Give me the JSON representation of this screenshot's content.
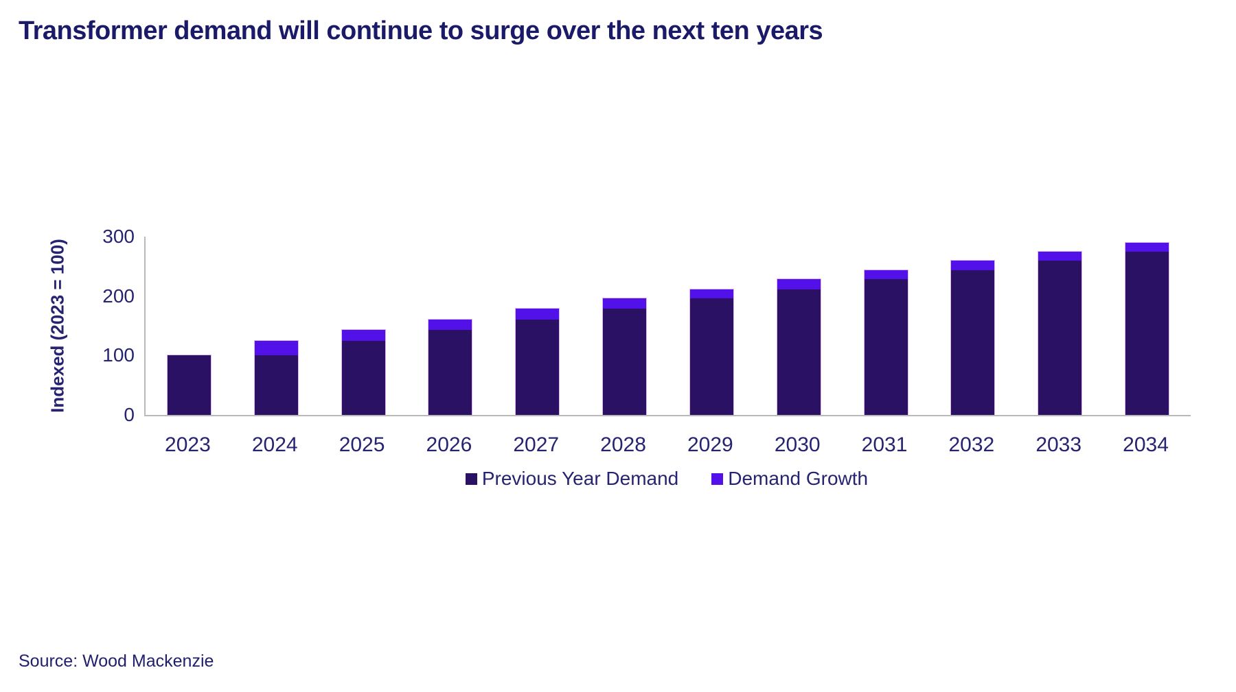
{
  "page": {
    "title": "Transformer demand will continue to surge over the next ten years",
    "source": "Source: Wood Mackenzie"
  },
  "colors": {
    "previous_year_demand": "#2a1164",
    "demand_growth": "#5211e8",
    "bar_outline": "#e2b6e9",
    "axis_line": "#b9b9b9",
    "axis_text": "#262371",
    "title_text": "#1b1a68"
  },
  "chart_data": {
    "type": "bar",
    "stacked": true,
    "categories": [
      "2023",
      "2024",
      "2025",
      "2026",
      "2027",
      "2028",
      "2029",
      "2030",
      "2031",
      "2032",
      "2033",
      "2034"
    ],
    "series": [
      {
        "name": "Previous Year Demand",
        "color": "#2a1164",
        "values": [
          100,
          100,
          125,
          143,
          160,
          179,
          196,
          211,
          228,
          244,
          260,
          275
        ]
      },
      {
        "name": "Demand Growth",
        "color": "#5211e8",
        "values": [
          0,
          25,
          18,
          17,
          19,
          17,
          15,
          17,
          16,
          16,
          15,
          15
        ]
      }
    ],
    "totals": [
      100,
      125,
      143,
      160,
      179,
      196,
      211,
      228,
      244,
      260,
      275,
      290
    ],
    "xlabel": "",
    "ylabel": "Indexed (2023 = 100)",
    "y_ticks": [
      0,
      100,
      200,
      300
    ],
    "ylim": [
      0,
      300
    ],
    "grid": false,
    "legend_position": "bottom"
  }
}
